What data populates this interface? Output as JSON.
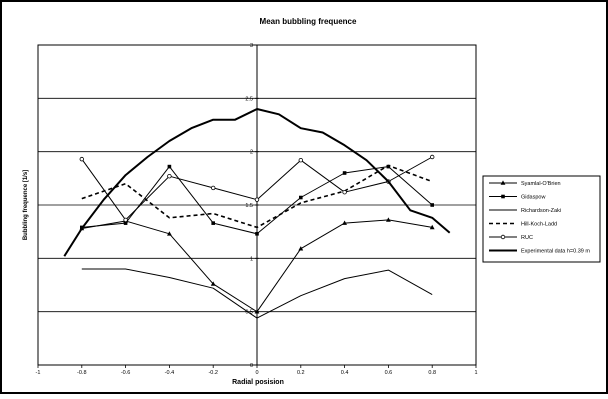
{
  "chart_data": {
    "type": "line",
    "title": "Mean bubbling frequence",
    "xlabel": "Radial posision",
    "ylabel": "Bubbling frequence [1/s]",
    "xlim": [
      -1,
      1
    ],
    "ylim": [
      0,
      3
    ],
    "x_ticks": [
      "-1",
      "-0.8",
      "-0.6",
      "-0.4",
      "-0.2",
      "0",
      "0.2",
      "0.4",
      "0.6",
      "0.8",
      "1"
    ],
    "y_ticks": [
      "0",
      "0.5",
      "1",
      "1.5",
      "2",
      "2.5",
      "3"
    ],
    "grid": "horizontal major gridlines",
    "legend_position": "right",
    "series": [
      {
        "name": "Syamlal-O'Brien",
        "marker": "triangle",
        "dash": "solid",
        "width": 1,
        "x": [
          -0.8,
          -0.6,
          -0.4,
          -0.2,
          0,
          0.2,
          0.4,
          0.6,
          0.8
        ],
        "y": [
          1.28,
          1.35,
          1.23,
          0.76,
          0.5,
          1.09,
          1.33,
          1.36,
          1.29
        ]
      },
      {
        "name": "Gidaspow",
        "marker": "square",
        "dash": "solid",
        "width": 1,
        "x": [
          -0.8,
          -0.6,
          -0.4,
          -0.2,
          0,
          0.2,
          0.4,
          0.6,
          0.8
        ],
        "y": [
          1.29,
          1.33,
          1.86,
          1.33,
          1.23,
          1.57,
          1.8,
          1.86,
          1.5
        ]
      },
      {
        "name": "Richardson-Zaki",
        "marker": "none",
        "dash": "solid",
        "width": 1,
        "x": [
          -0.8,
          -0.6,
          -0.4,
          -0.2,
          0,
          0.2,
          0.4,
          0.6,
          0.8
        ],
        "y": [
          0.9,
          0.9,
          0.82,
          0.72,
          0.44,
          0.65,
          0.81,
          0.89,
          0.66
        ]
      },
      {
        "name": "Hill-Koch-Ladd",
        "marker": "none",
        "dash": "dashed",
        "width": 1.6,
        "x": [
          -0.8,
          -0.6,
          -0.4,
          -0.2,
          0,
          0.2,
          0.4,
          0.6,
          0.8
        ],
        "y": [
          1.56,
          1.7,
          1.38,
          1.42,
          1.29,
          1.52,
          1.63,
          1.87,
          1.72
        ]
      },
      {
        "name": "RUC",
        "marker": "circle",
        "dash": "solid",
        "width": 1,
        "x": [
          -0.8,
          -0.6,
          -0.4,
          -0.2,
          0,
          0.2,
          0.4,
          0.6,
          0.8
        ],
        "y": [
          1.93,
          1.36,
          1.77,
          1.66,
          1.55,
          1.92,
          1.62,
          1.72,
          1.95
        ]
      },
      {
        "name": "Experimental data h=0.39 m",
        "marker": "none",
        "dash": "solid",
        "width": 2,
        "x": [
          -0.88,
          -0.8,
          -0.7,
          -0.6,
          -0.5,
          -0.4,
          -0.3,
          -0.2,
          -0.1,
          0,
          0.1,
          0.2,
          0.3,
          0.4,
          0.5,
          0.6,
          0.7,
          0.8,
          0.88
        ],
        "y": [
          1.02,
          1.28,
          1.55,
          1.78,
          1.95,
          2.1,
          2.22,
          2.3,
          2.3,
          2.4,
          2.35,
          2.22,
          2.18,
          2.06,
          1.92,
          1.72,
          1.45,
          1.38,
          1.24
        ]
      }
    ]
  }
}
